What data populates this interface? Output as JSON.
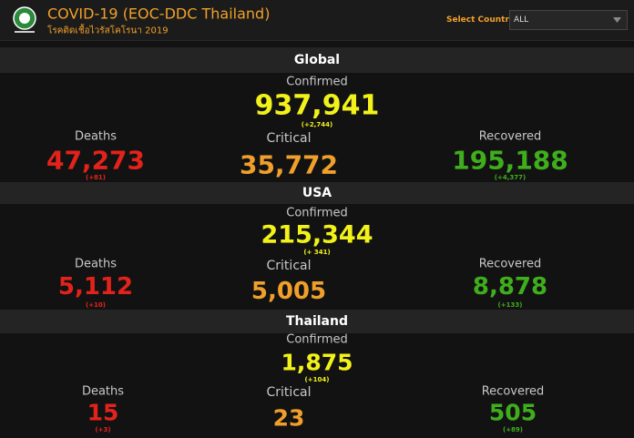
{
  "header": {
    "title": "COVID-19 (EOC-DDC Thailand)",
    "subtitle": "โรคติดเชื้อไวรัสโคโรนา 2019",
    "select_label": "Select Country",
    "select_value": "ALL"
  },
  "sections": [
    {
      "name": "Global",
      "confirmed": {
        "label": "Confirmed",
        "value": "937,941",
        "change": "(+2,744)"
      },
      "deaths": {
        "label": "Deaths",
        "value": "47,273",
        "change": "(+81)"
      },
      "critical": {
        "label": "Critical",
        "value": "35,772"
      },
      "recovered": {
        "label": "Recovered",
        "value": "195,188",
        "change": "(+4,377)"
      }
    },
    {
      "name": "USA",
      "confirmed": {
        "label": "Confirmed",
        "value": "215,344",
        "change": "(+ 341)"
      },
      "deaths": {
        "label": "Deaths",
        "value": "5,112",
        "change": "(+10)"
      },
      "critical": {
        "label": "Critical",
        "value": "5,005"
      },
      "recovered": {
        "label": "Recovered",
        "value": "8,878",
        "change": "(+133)"
      }
    },
    {
      "name": "Thailand",
      "confirmed": {
        "label": "Confirmed",
        "value": "1,875",
        "change": "(+104)"
      },
      "deaths": {
        "label": "Deaths",
        "value": "15",
        "change": "(+3)"
      },
      "critical": {
        "label": "Critical",
        "value": "23"
      },
      "recovered": {
        "label": "Recovered",
        "value": "505",
        "change": "(+89)"
      }
    }
  ]
}
